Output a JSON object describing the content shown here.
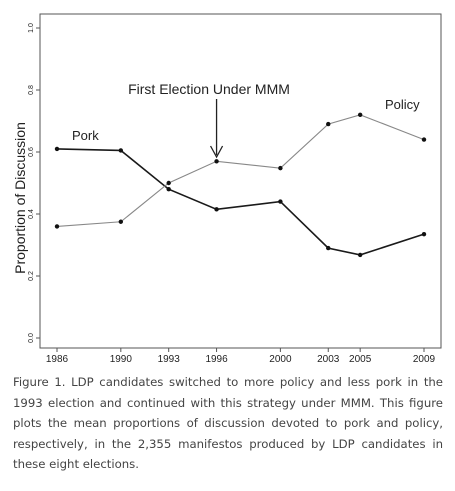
{
  "chart_data": {
    "type": "line",
    "x": [
      1986,
      1990,
      1993,
      1996,
      2000,
      2003,
      2005,
      2009
    ],
    "xticks": [
      "1986",
      "1990",
      "1993",
      "1996",
      "2000",
      "2003",
      "2005",
      "2009"
    ],
    "ylim": [
      0,
      1
    ],
    "yticks": [
      "0.0",
      "0.2",
      "0.4",
      "0.6",
      "0.8",
      "1.0"
    ],
    "ytick_values": [
      0,
      0.2,
      0.4,
      0.6,
      0.8,
      1.0
    ],
    "ylabel": "Proportion of Discussion",
    "xlabel": "",
    "grid": false,
    "series": [
      {
        "name": "Pork",
        "values": [
          0.61,
          0.605,
          0.48,
          0.415,
          0.44,
          0.29,
          0.268,
          0.335
        ],
        "color": "#1a1a1a"
      },
      {
        "name": "Policy",
        "values": [
          0.36,
          0.375,
          0.5,
          0.57,
          0.548,
          0.69,
          0.72,
          0.64
        ],
        "color": "#888888"
      }
    ],
    "annotation": {
      "text": "First Election Under MMM",
      "x": 1996
    }
  },
  "caption": "Figure 1. LDP candidates switched to more policy and less pork in the 1993 election and continued with this strategy under MMM. This figure plots the mean proportions of discussion devoted to pork and policy, respectively, in the 2,355 manifestos produced by LDP candidates in these eight elections."
}
